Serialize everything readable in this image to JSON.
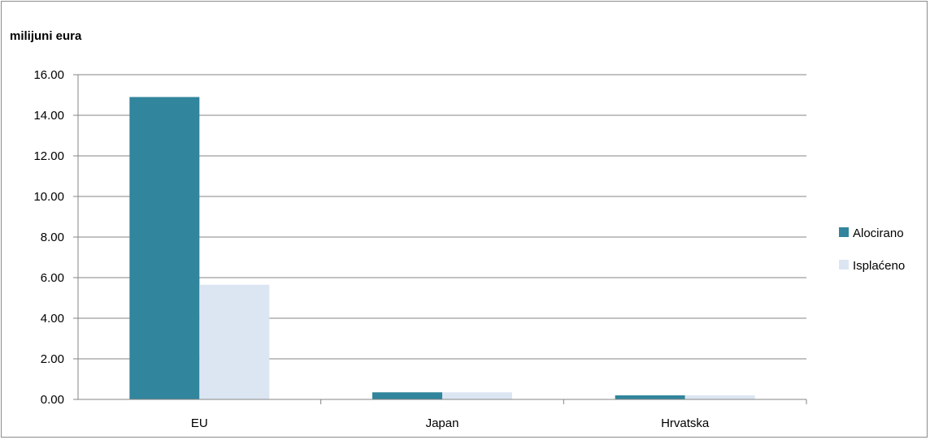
{
  "chart_data": {
    "type": "bar",
    "title": "milijuni eura",
    "categories": [
      "EU",
      "Japan",
      "Hrvatska"
    ],
    "series": [
      {
        "name": "Alocirano",
        "color": "#31859c",
        "values": [
          14.9,
          0.35,
          0.2
        ]
      },
      {
        "name": "Isplaćeno",
        "color": "#dce6f2",
        "values": [
          5.65,
          0.35,
          0.2
        ]
      }
    ],
    "ylim": [
      0,
      16
    ],
    "yticks": [
      "0.00",
      "2.00",
      "4.00",
      "6.00",
      "8.00",
      "10.00",
      "12.00",
      "14.00",
      "16.00"
    ],
    "grid": true,
    "legend": "right"
  }
}
